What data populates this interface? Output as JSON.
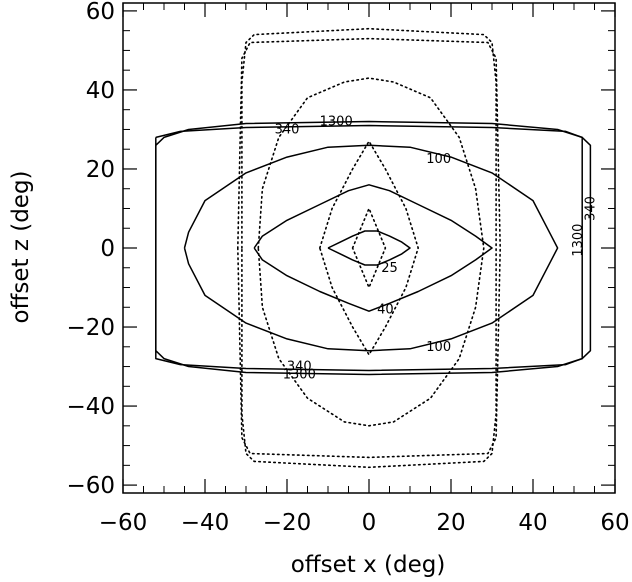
{
  "chart_data": {
    "type": "line",
    "title": "",
    "xlabel": "offset x (deg)",
    "ylabel": "offset z (deg)",
    "xlim": [
      -60,
      60
    ],
    "ylim": [
      -62,
      62
    ],
    "xticks": [
      -60,
      -40,
      -20,
      0,
      20,
      40,
      60
    ],
    "yticks": [
      -60,
      -40,
      -20,
      0,
      20,
      40,
      60
    ],
    "tick_labels_x": [
      "−60",
      "−40",
      "−20",
      "0",
      "20",
      "40",
      "60"
    ],
    "tick_labels_y": [
      "−60",
      "−40",
      "−20",
      "0",
      "20",
      "40",
      "60"
    ],
    "grid": false,
    "legend": "none",
    "series": [
      {
        "style": "solid",
        "label": "25",
        "points": [
          [
            -10,
            0
          ],
          [
            -7,
            1.5
          ],
          [
            -4,
            3
          ],
          [
            -1,
            4.3
          ],
          [
            2,
            4.3
          ],
          [
            5,
            3
          ],
          [
            8,
            1.5
          ],
          [
            10,
            0
          ],
          [
            8,
            -1.5
          ],
          [
            5,
            -3
          ],
          [
            2,
            -4.3
          ],
          [
            -1,
            -4.3
          ],
          [
            -4,
            -3
          ],
          [
            -7,
            -1.5
          ],
          [
            -10,
            0
          ]
        ]
      },
      {
        "style": "solid",
        "label": "40",
        "points": [
          [
            -28,
            0
          ],
          [
            -26,
            3
          ],
          [
            -20,
            7
          ],
          [
            -12,
            11
          ],
          [
            -5,
            14.5
          ],
          [
            0,
            16
          ],
          [
            5,
            14.5
          ],
          [
            12,
            11
          ],
          [
            20,
            7
          ],
          [
            26,
            3
          ],
          [
            30,
            0
          ],
          [
            26,
            -3
          ],
          [
            20,
            -7
          ],
          [
            12,
            -11
          ],
          [
            5,
            -14
          ],
          [
            0,
            -16
          ],
          [
            -5,
            -14
          ],
          [
            -12,
            -11
          ],
          [
            -20,
            -7
          ],
          [
            -26,
            -3
          ],
          [
            -28,
            0
          ]
        ]
      },
      {
        "style": "solid",
        "label": "100",
        "points": [
          [
            -45,
            0
          ],
          [
            -44,
            4
          ],
          [
            -40,
            12
          ],
          [
            -30,
            19
          ],
          [
            -20,
            23
          ],
          [
            -10,
            25.5
          ],
          [
            0,
            26
          ],
          [
            10,
            25.5
          ],
          [
            20,
            23
          ],
          [
            30,
            19
          ],
          [
            40,
            12
          ],
          [
            44,
            4
          ],
          [
            46,
            0
          ],
          [
            44,
            -4
          ],
          [
            40,
            -12
          ],
          [
            30,
            -19
          ],
          [
            20,
            -23
          ],
          [
            10,
            -25.5
          ],
          [
            0,
            -26
          ],
          [
            -10,
            -25.5
          ],
          [
            -20,
            -23
          ],
          [
            -30,
            -19
          ],
          [
            -40,
            -12
          ],
          [
            -44,
            -4
          ],
          [
            -45,
            0
          ]
        ]
      },
      {
        "style": "solid",
        "label": "340",
        "points": [
          [
            -52,
            28
          ],
          [
            -46,
            29.5
          ],
          [
            -30,
            30.5
          ],
          [
            0,
            31
          ],
          [
            30,
            30.5
          ],
          [
            48,
            29.5
          ],
          [
            52,
            28
          ],
          [
            52,
            -28
          ],
          [
            48,
            -29.5
          ],
          [
            30,
            -30.5
          ],
          [
            0,
            -31
          ],
          [
            -30,
            -30.5
          ],
          [
            -46,
            -29.5
          ],
          [
            -52,
            -28
          ],
          [
            -52,
            28
          ]
        ]
      },
      {
        "style": "solid",
        "label": "1300",
        "points": [
          [
            -52,
            26
          ],
          [
            -50,
            28
          ],
          [
            -44,
            30
          ],
          [
            -30,
            31.5
          ],
          [
            0,
            32
          ],
          [
            30,
            31.5
          ],
          [
            46,
            30
          ],
          [
            52,
            28
          ],
          [
            54,
            26
          ],
          [
            54,
            -26
          ],
          [
            52,
            -28
          ],
          [
            46,
            -30
          ],
          [
            30,
            -31.5
          ],
          [
            0,
            -32
          ],
          [
            -30,
            -31.5
          ],
          [
            -44,
            -30
          ],
          [
            -50,
            -28
          ],
          [
            -52,
            -26
          ],
          [
            -52,
            26
          ]
        ]
      },
      {
        "style": "dotted",
        "points": [
          [
            -4,
            0
          ],
          [
            -2,
            5
          ],
          [
            0,
            10
          ],
          [
            2,
            5
          ],
          [
            4,
            0
          ],
          [
            2,
            -5
          ],
          [
            0,
            -10
          ],
          [
            -2,
            -5
          ],
          [
            -4,
            0
          ]
        ]
      },
      {
        "style": "dotted",
        "points": [
          [
            -12,
            0
          ],
          [
            -9,
            10
          ],
          [
            -4,
            20
          ],
          [
            0,
            27
          ],
          [
            4,
            20
          ],
          [
            9,
            10
          ],
          [
            12,
            0
          ],
          [
            9,
            -10
          ],
          [
            4,
            -20
          ],
          [
            0,
            -27
          ],
          [
            -4,
            -20
          ],
          [
            -9,
            -10
          ],
          [
            -12,
            0
          ]
        ]
      },
      {
        "style": "dotted",
        "points": [
          [
            -27,
            0
          ],
          [
            -26,
            15
          ],
          [
            -22,
            28
          ],
          [
            -15,
            38
          ],
          [
            -6,
            42
          ],
          [
            0,
            43
          ],
          [
            6,
            42
          ],
          [
            15,
            38
          ],
          [
            22,
            28
          ],
          [
            26,
            15
          ],
          [
            28,
            0
          ],
          [
            26,
            -15
          ],
          [
            22,
            -28
          ],
          [
            15,
            -38
          ],
          [
            6,
            -44
          ],
          [
            0,
            -45
          ],
          [
            -6,
            -44
          ],
          [
            -15,
            -38
          ],
          [
            -22,
            -28
          ],
          [
            -26,
            -15
          ],
          [
            -27,
            0
          ]
        ]
      },
      {
        "style": "dotted",
        "points": [
          [
            -31,
            0
          ],
          [
            -31,
            42
          ],
          [
            -30,
            52
          ],
          [
            -28,
            54
          ],
          [
            0,
            55.5
          ],
          [
            28,
            54
          ],
          [
            30,
            52
          ],
          [
            31,
            42
          ],
          [
            31,
            -42
          ],
          [
            30,
            -52
          ],
          [
            28,
            -54
          ],
          [
            0,
            -55.5
          ],
          [
            -28,
            -54
          ],
          [
            -30,
            -52
          ],
          [
            -31,
            -42
          ],
          [
            -31,
            0
          ]
        ]
      },
      {
        "style": "dotted",
        "points": [
          [
            -32,
            0
          ],
          [
            -31,
            -48
          ],
          [
            -29,
            -52
          ],
          [
            0,
            -53
          ],
          [
            29,
            -52
          ],
          [
            31,
            -48
          ],
          [
            32,
            0
          ],
          [
            31,
            48
          ],
          [
            29,
            52
          ],
          [
            0,
            53
          ],
          [
            -29,
            52
          ],
          [
            -31,
            48
          ],
          [
            -32,
            0
          ]
        ]
      }
    ],
    "annotations": [
      {
        "text": "25",
        "x": 5,
        "y": -5
      },
      {
        "text": "40",
        "x": 4,
        "y": -15.5
      },
      {
        "text": "100",
        "x": 17,
        "y": 22.5
      },
      {
        "text": "100",
        "x": 17,
        "y": -25
      },
      {
        "text": "340",
        "x": -20,
        "y": 30
      },
      {
        "text": "1300",
        "x": -8,
        "y": 32
      },
      {
        "text": "340",
        "x": -17,
        "y": -30
      },
      {
        "text": "1300",
        "x": -17,
        "y": -32
      },
      {
        "text": "1300",
        "x": 51,
        "y": 2
      },
      {
        "text": "340",
        "x": 54,
        "y": 10
      }
    ]
  }
}
